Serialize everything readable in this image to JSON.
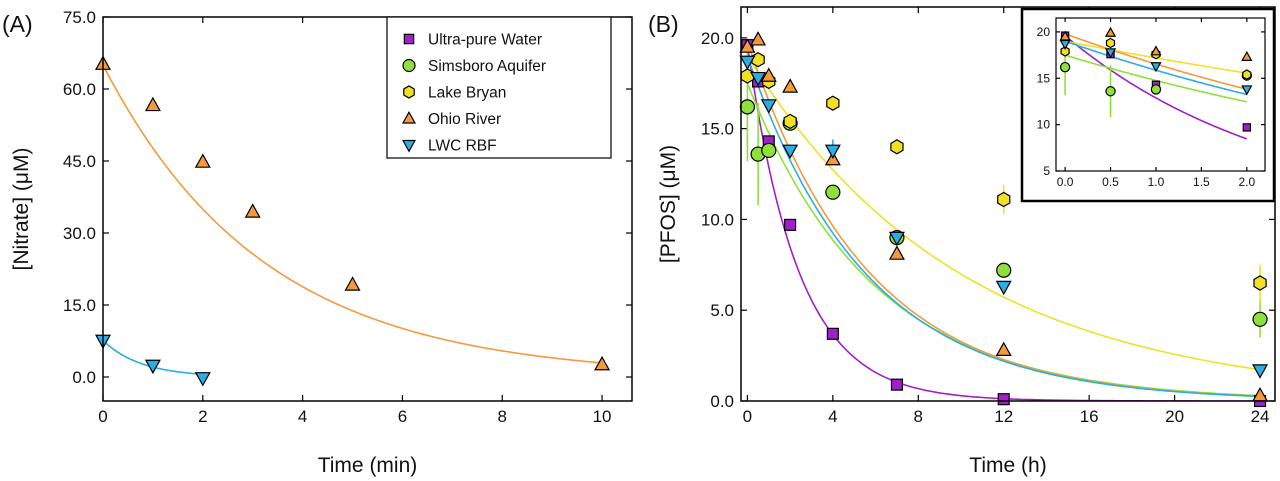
{
  "colors": {
    "ultra_pure_water": "#a020c8",
    "simsboro_aquifer": "#8fe03a",
    "lake_bryan": "#f2e024",
    "ohio_river": "#f59a3c",
    "lwc_rbf": "#2aaee8",
    "ohio_fit": "#f5922c",
    "lwc_fit": "#22a8e8"
  },
  "legend": {
    "items": [
      {
        "label": "Ultra-pure Water",
        "marker": "square",
        "color_key": "ultra_pure_water"
      },
      {
        "label": "Simsboro Aquifer",
        "marker": "circle",
        "color_key": "simsboro_aquifer"
      },
      {
        "label": "Lake Bryan",
        "marker": "hexagon",
        "color_key": "lake_bryan"
      },
      {
        "label": "Ohio River",
        "marker": "triangle-up",
        "color_key": "ohio_river"
      },
      {
        "label": "LWC RBF",
        "marker": "triangle-down",
        "color_key": "lwc_rbf"
      }
    ]
  },
  "chart_data": [
    {
      "panel": "(A)",
      "type": "scatter",
      "xlabel": "Time (min)",
      "ylabel": "[Nitrate] (μM)",
      "xlim": [
        0,
        10.6
      ],
      "ylim": [
        -5,
        75
      ],
      "xticks": [
        "0",
        "2",
        "4",
        "6",
        "8",
        "10"
      ],
      "yticks": [
        "0.0",
        "15.0",
        "30.0",
        "45.0",
        "60.0",
        "75.0"
      ],
      "series": [
        {
          "name": "Ohio River",
          "marker": "triangle-up",
          "color_key": "ohio_river",
          "x": [
            0,
            1,
            2,
            3,
            5,
            10
          ],
          "y": [
            65.2,
            56.6,
            44.8,
            34.4,
            19.2,
            2.6
          ],
          "fit": {
            "model": "exponential",
            "c0": 65,
            "k": 0.31
          }
        },
        {
          "name": "LWC RBF",
          "marker": "triangle-down",
          "color_key": "lwc_rbf",
          "x": [
            0,
            1,
            2
          ],
          "y": [
            7.6,
            2.4,
            -0.2
          ],
          "fit": {
            "model": "exponential",
            "c0": 7.6,
            "k": 1.3
          }
        }
      ]
    },
    {
      "panel": "(B)",
      "type": "scatter",
      "xlabel": "Time (h)",
      "ylabel": "[PFOS] (μM)",
      "xlim": [
        -0.3,
        24.7
      ],
      "ylim": [
        0,
        21.7
      ],
      "xticks": [
        "0",
        "4",
        "8",
        "12",
        "16",
        "20",
        "24"
      ],
      "yticks": [
        "0.0",
        "5.0",
        "10.0",
        "15.0",
        "20.0"
      ],
      "series": [
        {
          "name": "Ultra-pure Water",
          "marker": "square",
          "color_key": "ultra_pure_water",
          "x": [
            0,
            0.5,
            1,
            2,
            4,
            7,
            12,
            24
          ],
          "y": [
            19.6,
            17.6,
            14.3,
            9.7,
            3.7,
            0.9,
            0.1,
            0.0
          ],
          "fit": {
            "model": "exponential",
            "c0": 19.6,
            "k": 0.42
          }
        },
        {
          "name": "Simsboro Aquifer",
          "marker": "circle",
          "color_key": "simsboro_aquifer",
          "x": [
            0,
            0.5,
            1,
            2,
            4,
            7,
            12,
            24
          ],
          "y": [
            16.2,
            13.6,
            13.8,
            15.3,
            11.5,
            9.0,
            7.2,
            4.5
          ],
          "yerr": [
            3.0,
            2.8,
            0,
            0,
            0,
            0,
            0,
            1.0
          ],
          "fit": {
            "model": "exponential",
            "c0": 17.5,
            "k": 0.17
          }
        },
        {
          "name": "Lake Bryan",
          "marker": "hexagon",
          "color_key": "lake_bryan",
          "x": [
            0,
            0.5,
            1,
            2,
            4,
            7,
            12,
            24
          ],
          "y": [
            17.9,
            18.8,
            17.6,
            15.4,
            16.4,
            14.0,
            11.1,
            6.5
          ],
          "yerr": [
            0,
            0,
            0,
            0,
            0,
            0,
            0.8,
            1.0
          ],
          "fit": {
            "model": "exponential",
            "c0": 19.0,
            "k": 0.1
          }
        },
        {
          "name": "Ohio River",
          "marker": "triangle-up",
          "color_key": "ohio_river",
          "x": [
            0,
            0.5,
            1,
            2,
            4,
            7,
            12,
            24
          ],
          "y": [
            19.5,
            19.9,
            17.9,
            17.3,
            13.3,
            8.1,
            2.8,
            0.3
          ],
          "fit": {
            "model": "exponential",
            "c0": 19.8,
            "k": 0.18
          }
        },
        {
          "name": "LWC RBF",
          "marker": "triangle-down",
          "color_key": "lwc_rbf",
          "x": [
            0,
            0.5,
            1,
            2,
            4,
            7,
            12,
            24
          ],
          "y": [
            18.7,
            17.8,
            16.3,
            13.8,
            13.8,
            9.0,
            6.3,
            1.7
          ],
          "yerr": [
            0,
            0,
            0,
            0,
            0.6,
            0,
            0,
            0
          ],
          "fit": {
            "model": "exponential",
            "c0": 19.0,
            "k": 0.18
          }
        }
      ],
      "inset": {
        "xlim": [
          -0.1,
          2.2
        ],
        "ylim": [
          5,
          21.5
        ],
        "xticks": [
          "0.0",
          "0.5",
          "1.0",
          "1.5",
          "2.0"
        ],
        "yticks": [
          "5",
          "10",
          "15",
          "20"
        ],
        "x_range": [
          0,
          2
        ]
      }
    }
  ]
}
